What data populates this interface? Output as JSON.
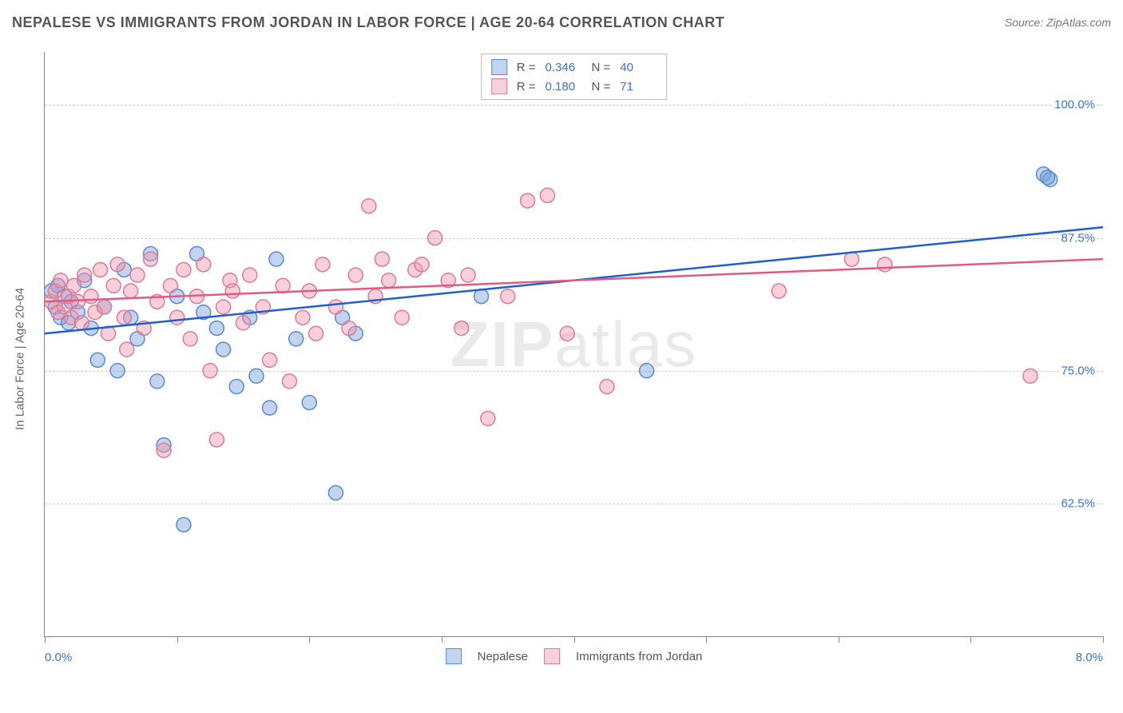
{
  "title": "NEPALESE VS IMMIGRANTS FROM JORDAN IN LABOR FORCE | AGE 20-64 CORRELATION CHART",
  "source": "Source: ZipAtlas.com",
  "watermark_prefix": "ZIP",
  "watermark_suffix": "atlas",
  "chart": {
    "type": "scatter",
    "xlim": [
      0.0,
      8.0
    ],
    "ylim": [
      50.0,
      105.0
    ],
    "x_label_min": "0.0%",
    "x_label_max": "8.0%",
    "y_axis_label": "In Labor Force | Age 20-64",
    "y_gridlines": [
      {
        "value": 62.5,
        "label": "62.5%"
      },
      {
        "value": 75.0,
        "label": "75.0%"
      },
      {
        "value": 87.5,
        "label": "87.5%"
      },
      {
        "value": 100.0,
        "label": "100.0%"
      }
    ],
    "x_ticks": [
      0,
      1,
      2,
      3,
      4,
      5,
      6,
      7,
      8
    ],
    "background_color": "#ffffff",
    "grid_color": "#cccccc",
    "axis_color": "#888888",
    "marker_radius": 9,
    "marker_stroke_width": 1.5,
    "trendline_width": 2.5,
    "series": [
      {
        "id": "nepalese",
        "name": "Nepalese",
        "fill": "rgba(120,160,220,0.45)",
        "stroke": "#5a8bd0",
        "trend_color": "#1f5fd0",
        "R": "0.346",
        "N": "40",
        "trend_start": {
          "x": 0.0,
          "y": 78.5
        },
        "trend_end": {
          "x": 8.0,
          "y": 88.5
        },
        "points": [
          {
            "x": 0.05,
            "y": 82.5
          },
          {
            "x": 0.08,
            "y": 81.0
          },
          {
            "x": 0.1,
            "y": 83.0
          },
          {
            "x": 0.12,
            "y": 80.0
          },
          {
            "x": 0.15,
            "y": 82.0
          },
          {
            "x": 0.18,
            "y": 79.5
          },
          {
            "x": 0.2,
            "y": 81.5
          },
          {
            "x": 0.25,
            "y": 80.5
          },
          {
            "x": 0.3,
            "y": 83.5
          },
          {
            "x": 0.35,
            "y": 79.0
          },
          {
            "x": 0.4,
            "y": 76.0
          },
          {
            "x": 0.45,
            "y": 81.0
          },
          {
            "x": 0.55,
            "y": 75.0
          },
          {
            "x": 0.6,
            "y": 84.5
          },
          {
            "x": 0.65,
            "y": 80.0
          },
          {
            "x": 0.7,
            "y": 78.0
          },
          {
            "x": 0.8,
            "y": 86.0
          },
          {
            "x": 0.85,
            "y": 74.0
          },
          {
            "x": 0.9,
            "y": 68.0
          },
          {
            "x": 1.0,
            "y": 82.0
          },
          {
            "x": 1.05,
            "y": 60.5
          },
          {
            "x": 1.15,
            "y": 86.0
          },
          {
            "x": 1.2,
            "y": 80.5
          },
          {
            "x": 1.3,
            "y": 79.0
          },
          {
            "x": 1.35,
            "y": 77.0
          },
          {
            "x": 1.45,
            "y": 73.5
          },
          {
            "x": 1.55,
            "y": 80.0
          },
          {
            "x": 1.6,
            "y": 74.5
          },
          {
            "x": 1.7,
            "y": 71.5
          },
          {
            "x": 1.75,
            "y": 85.5
          },
          {
            "x": 1.9,
            "y": 78.0
          },
          {
            "x": 2.0,
            "y": 72.0
          },
          {
            "x": 2.2,
            "y": 63.5
          },
          {
            "x": 2.25,
            "y": 80.0
          },
          {
            "x": 2.35,
            "y": 78.5
          },
          {
            "x": 3.3,
            "y": 82.0
          },
          {
            "x": 4.55,
            "y": 75.0
          },
          {
            "x": 7.55,
            "y": 93.5
          },
          {
            "x": 7.6,
            "y": 93.0
          },
          {
            "x": 7.58,
            "y": 93.2
          }
        ]
      },
      {
        "id": "jordan",
        "name": "Immigrants from Jordan",
        "fill": "rgba(240,150,170,0.45)",
        "stroke": "#e07a95",
        "trend_color": "#e05a85",
        "R": "0.180",
        "N": "71",
        "trend_start": {
          "x": 0.0,
          "y": 81.5
        },
        "trend_end": {
          "x": 8.0,
          "y": 85.5
        },
        "points": [
          {
            "x": 0.05,
            "y": 81.5
          },
          {
            "x": 0.08,
            "y": 82.5
          },
          {
            "x": 0.1,
            "y": 80.5
          },
          {
            "x": 0.12,
            "y": 83.5
          },
          {
            "x": 0.15,
            "y": 81.0
          },
          {
            "x": 0.18,
            "y": 82.0
          },
          {
            "x": 0.2,
            "y": 80.0
          },
          {
            "x": 0.22,
            "y": 83.0
          },
          {
            "x": 0.25,
            "y": 81.5
          },
          {
            "x": 0.28,
            "y": 79.5
          },
          {
            "x": 0.3,
            "y": 84.0
          },
          {
            "x": 0.35,
            "y": 82.0
          },
          {
            "x": 0.38,
            "y": 80.5
          },
          {
            "x": 0.42,
            "y": 84.5
          },
          {
            "x": 0.45,
            "y": 81.0
          },
          {
            "x": 0.48,
            "y": 78.5
          },
          {
            "x": 0.52,
            "y": 83.0
          },
          {
            "x": 0.55,
            "y": 85.0
          },
          {
            "x": 0.6,
            "y": 80.0
          },
          {
            "x": 0.65,
            "y": 82.5
          },
          {
            "x": 0.7,
            "y": 84.0
          },
          {
            "x": 0.75,
            "y": 79.0
          },
          {
            "x": 0.8,
            "y": 85.5
          },
          {
            "x": 0.85,
            "y": 81.5
          },
          {
            "x": 0.9,
            "y": 67.5
          },
          {
            "x": 0.95,
            "y": 83.0
          },
          {
            "x": 1.0,
            "y": 80.0
          },
          {
            "x": 1.05,
            "y": 84.5
          },
          {
            "x": 1.1,
            "y": 78.0
          },
          {
            "x": 1.15,
            "y": 82.0
          },
          {
            "x": 1.2,
            "y": 85.0
          },
          {
            "x": 1.25,
            "y": 75.0
          },
          {
            "x": 1.3,
            "y": 68.5
          },
          {
            "x": 1.35,
            "y": 81.0
          },
          {
            "x": 1.4,
            "y": 83.5
          },
          {
            "x": 1.5,
            "y": 79.5
          },
          {
            "x": 1.55,
            "y": 84.0
          },
          {
            "x": 1.65,
            "y": 81.0
          },
          {
            "x": 1.7,
            "y": 76.0
          },
          {
            "x": 1.8,
            "y": 83.0
          },
          {
            "x": 1.85,
            "y": 74.0
          },
          {
            "x": 1.95,
            "y": 80.0
          },
          {
            "x": 2.0,
            "y": 82.5
          },
          {
            "x": 2.05,
            "y": 78.5
          },
          {
            "x": 2.1,
            "y": 85.0
          },
          {
            "x": 2.2,
            "y": 81.0
          },
          {
            "x": 2.3,
            "y": 79.0
          },
          {
            "x": 2.35,
            "y": 84.0
          },
          {
            "x": 2.45,
            "y": 90.5
          },
          {
            "x": 2.5,
            "y": 82.0
          },
          {
            "x": 2.55,
            "y": 85.5
          },
          {
            "x": 2.6,
            "y": 83.5
          },
          {
            "x": 2.7,
            "y": 80.0
          },
          {
            "x": 2.8,
            "y": 84.5
          },
          {
            "x": 2.85,
            "y": 85.0
          },
          {
            "x": 2.95,
            "y": 87.5
          },
          {
            "x": 3.05,
            "y": 83.5
          },
          {
            "x": 3.15,
            "y": 79.0
          },
          {
            "x": 3.2,
            "y": 84.0
          },
          {
            "x": 3.35,
            "y": 70.5
          },
          {
            "x": 3.5,
            "y": 82.0
          },
          {
            "x": 3.65,
            "y": 91.0
          },
          {
            "x": 3.8,
            "y": 91.5
          },
          {
            "x": 3.95,
            "y": 78.5
          },
          {
            "x": 4.25,
            "y": 73.5
          },
          {
            "x": 5.55,
            "y": 82.5
          },
          {
            "x": 6.1,
            "y": 85.5
          },
          {
            "x": 6.35,
            "y": 85.0
          },
          {
            "x": 7.45,
            "y": 74.5
          },
          {
            "x": 0.62,
            "y": 77.0
          },
          {
            "x": 1.42,
            "y": 82.5
          }
        ]
      }
    ],
    "legend_top": {
      "r_prefix": "R =",
      "n_prefix": "N ="
    },
    "legend_bottom": [
      {
        "series": "nepalese"
      },
      {
        "series": "jordan"
      }
    ]
  }
}
